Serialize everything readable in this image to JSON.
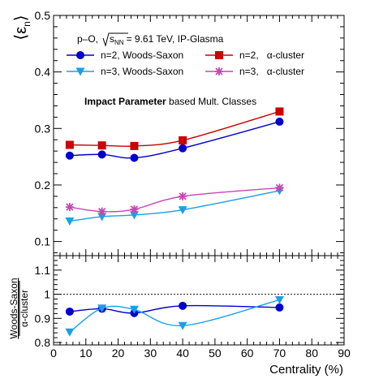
{
  "chart_data": [
    {
      "type": "line",
      "ylabel": "⟨ε",
      "ylabel_sub": "n",
      "ylabel_close": "⟩",
      "annotation": {
        "system": "p–O,",
        "energy_value": "= 9.61 TeV, IP-Glasma",
        "energy_symbol": "s",
        "energy_sub": "NN",
        "classes_bold": "Impact Parameter",
        "classes_rest": " based Mult. Classes"
      },
      "xlim": [
        0,
        90
      ],
      "ylim": [
        0.075,
        0.5
      ],
      "yticks": [
        0.1,
        0.2,
        0.3,
        0.4,
        0.5
      ],
      "yticklabels": [
        "0.1",
        "0.2",
        "0.3",
        "0.4",
        "0.5"
      ],
      "legend_placement": "top",
      "x": [
        5,
        15,
        25,
        40,
        70
      ],
      "series": [
        {
          "name": "n=2, Woods-Saxon",
          "values": [
            0.252,
            0.254,
            0.248,
            0.265,
            0.312
          ],
          "color": "#0000cc",
          "marker": "circle"
        },
        {
          "name": "n=2,   α-cluster",
          "values": [
            0.271,
            0.27,
            0.269,
            0.279,
            0.33
          ],
          "color": "#cc0000",
          "marker": "square"
        },
        {
          "name": "n=3, Woods-Saxon",
          "values": [
            0.136,
            0.144,
            0.147,
            0.156,
            0.19
          ],
          "color": "#1a9fe8",
          "marker": "triangle-down"
        },
        {
          "name": "n=3,   α-cluster",
          "values": [
            0.161,
            0.153,
            0.157,
            0.18,
            0.195
          ],
          "color": "#c845b4",
          "marker": "star"
        }
      ]
    },
    {
      "type": "line",
      "ylabel_top": "Woods-Saxon",
      "ylabel_bottom": "α-cluster",
      "xlabel": "Centrality (%)",
      "xlim": [
        0,
        90
      ],
      "xticks": [
        0,
        10,
        20,
        30,
        40,
        50,
        60,
        70,
        80,
        90
      ],
      "xticklabels": [
        "0",
        "10",
        "20",
        "30",
        "40",
        "50",
        "60",
        "70",
        "80",
        "90"
      ],
      "ylim": [
        0.79,
        1.16
      ],
      "yticks": [
        0.8,
        0.9,
        1.0,
        1.1
      ],
      "yticklabels": [
        "0.8",
        "0.9",
        "1",
        "1.1"
      ],
      "reference_line": 1.0,
      "x": [
        5,
        15,
        25,
        40,
        70
      ],
      "series": [
        {
          "values": [
            0.928,
            0.94,
            0.922,
            0.952,
            0.945
          ],
          "color": "#0000cc",
          "marker": "circle"
        },
        {
          "values": [
            0.843,
            0.942,
            0.937,
            0.87,
            0.977
          ],
          "color": "#1a9fe8",
          "marker": "triangle-down"
        }
      ]
    }
  ]
}
